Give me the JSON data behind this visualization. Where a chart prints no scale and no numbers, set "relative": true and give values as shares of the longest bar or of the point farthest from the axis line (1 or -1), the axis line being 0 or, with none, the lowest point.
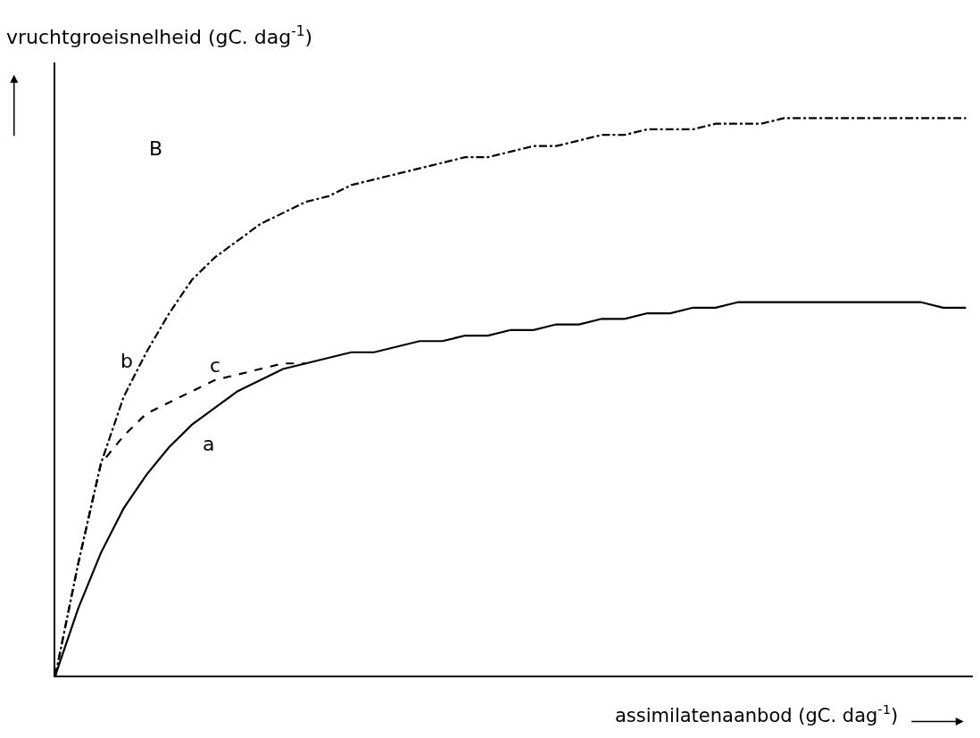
{
  "chart_data": {
    "type": "line",
    "relative": true,
    "xlabel": "assimilatenaanbod (gC. dag$^{-1}$)",
    "ylabel": "vruchtgroeisnelheid (gC. dag$^{-1}$)",
    "annotations": [
      "B"
    ],
    "categories": [
      null,
      null,
      null,
      null,
      null,
      null,
      null,
      null,
      null,
      null,
      null,
      null,
      null,
      null,
      null,
      null,
      null,
      null,
      null,
      null,
      null,
      null,
      null,
      null,
      null,
      null,
      null,
      null,
      null,
      null,
      null,
      null,
      null,
      null,
      null,
      null,
      null,
      null,
      null,
      null,
      null
    ],
    "series": [
      {
        "name": "a",
        "color": "#000000",
        "line_style": "solid",
        "values": [
          0,
          0.12,
          0.22,
          0.3,
          0.36,
          0.41,
          0.45,
          0.48,
          0.51,
          0.53,
          0.55,
          0.56,
          0.57,
          0.58,
          0.58,
          0.59,
          0.6,
          0.6,
          0.61,
          0.61,
          0.62,
          0.62,
          0.63,
          0.63,
          0.64,
          0.64,
          0.65,
          0.65,
          0.66,
          0.66,
          0.67,
          0.67,
          0.67,
          0.67,
          0.67,
          0.67,
          0.67,
          0.67,
          0.67,
          0.66,
          0.66
        ]
      },
      {
        "name": "b",
        "color": "#000000",
        "line_style": "dashdot",
        "values": [
          0,
          0.2,
          0.38,
          0.5,
          0.58,
          0.65,
          0.71,
          0.75,
          0.78,
          0.81,
          0.83,
          0.85,
          0.86,
          0.88,
          0.89,
          0.9,
          0.91,
          0.92,
          0.93,
          0.93,
          0.94,
          0.95,
          0.95,
          0.96,
          0.97,
          0.97,
          0.98,
          0.98,
          0.98,
          0.99,
          0.99,
          0.99,
          1.0,
          1.0,
          1.0,
          1.0,
          1.0,
          1.0,
          1.0,
          1.0,
          1.0
        ]
      },
      {
        "name": "c",
        "color": "#000000",
        "line_style": "dashed",
        "values": [
          0,
          0.2,
          0.38,
          0.43,
          0.47,
          0.49,
          0.51,
          0.53,
          0.54,
          0.55,
          0.56,
          0.56,
          null,
          null,
          null,
          null,
          null,
          null,
          null,
          null,
          null,
          null,
          null,
          null,
          null,
          null,
          null,
          null,
          null,
          null,
          null,
          null,
          null,
          null,
          null,
          null,
          null,
          null,
          null,
          null,
          null
        ]
      }
    ],
    "legend": false,
    "marker": "none"
  }
}
